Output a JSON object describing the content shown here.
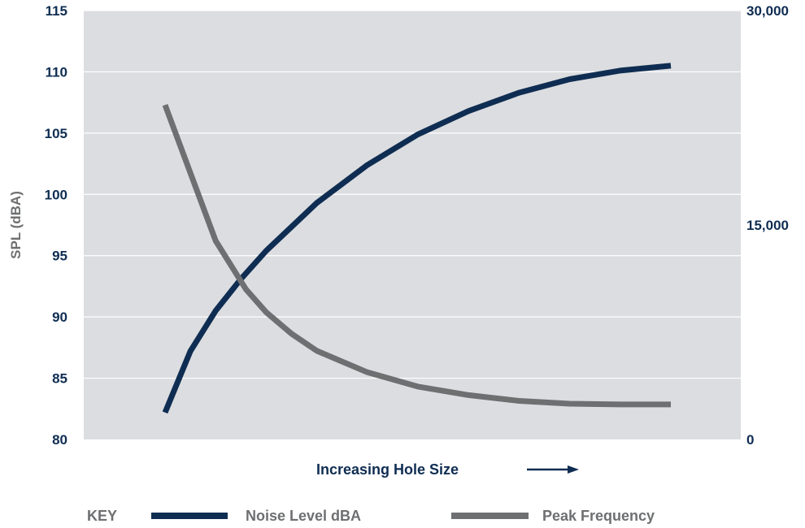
{
  "chart_data": {
    "type": "line",
    "xlabel": "Increasing Hole Size",
    "ylabel": "SPL (dBA)",
    "y_left": {
      "range": [
        80,
        115
      ],
      "ticks": [
        "80",
        "85",
        "90",
        "95",
        "100",
        "105",
        "110",
        "115"
      ]
    },
    "y_right": {
      "range": [
        0,
        30000
      ],
      "ticks": [
        "0",
        "15,000",
        "30,000"
      ]
    },
    "grid": true,
    "legend": {
      "placement": "bottom",
      "title": "KEY"
    },
    "series": [
      {
        "name": "Noise Level dBA",
        "axis": "left",
        "color": "#0f2d52",
        "x": [
          0,
          0.5,
          1,
          1.5,
          2,
          3,
          4,
          5,
          6,
          7,
          8,
          9,
          10
        ],
        "values": [
          82.2,
          87.2,
          90.5,
          93.1,
          95.4,
          99.3,
          102.4,
          104.9,
          106.8,
          108.3,
          109.4,
          110.1,
          110.5
        ]
      },
      {
        "name": "Peak Frequency",
        "axis": "right",
        "color": "#6e6f71",
        "x": [
          0,
          1,
          1.6,
          2,
          2.5,
          3,
          4,
          5,
          6,
          7,
          8,
          9,
          10
        ],
        "values": [
          23400,
          13900,
          10500,
          8900,
          7400,
          6200,
          4700,
          3700,
          3100,
          2700,
          2500,
          2450,
          2450
        ]
      }
    ]
  },
  "arrow_icon": "right-arrow-icon"
}
